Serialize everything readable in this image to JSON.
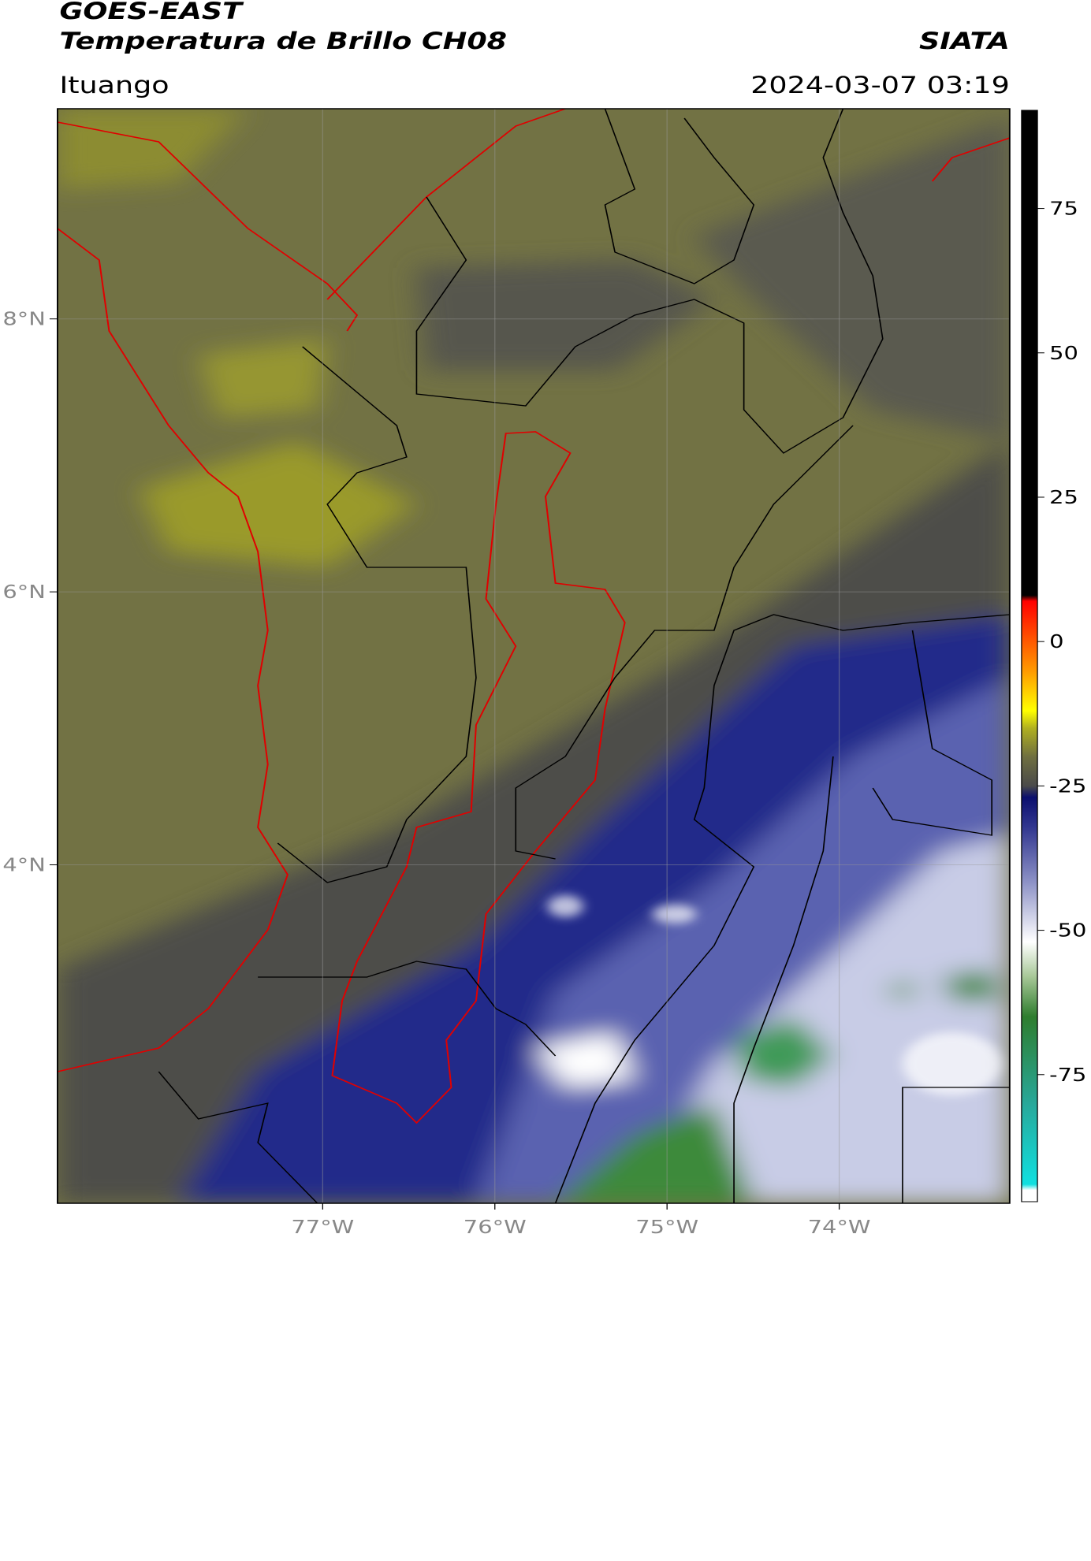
{
  "header": {
    "title": "GOES-EAST",
    "subtitle": "Temperatura de Brillo CH08",
    "source": "SIATA",
    "location": "Ituango",
    "datetime": "2024-03-07 03:19"
  },
  "map": {
    "xlim": [
      -78.54,
      -73.01
    ],
    "ylim": [
      1.52,
      9.54
    ],
    "xticks": [
      {
        "value": -77,
        "label": "77°W"
      },
      {
        "value": -76,
        "label": "76°W"
      },
      {
        "value": -75,
        "label": "75°W"
      },
      {
        "value": -74,
        "label": "74°W"
      }
    ],
    "yticks": [
      {
        "value": 8,
        "label": "8°N"
      },
      {
        "value": 6,
        "label": "6°N"
      },
      {
        "value": 4,
        "label": "4°N"
      }
    ],
    "grid": true
  },
  "colorbar": {
    "lim": [
      -97,
      92
    ],
    "ticks": [
      75,
      50,
      25,
      0,
      -25,
      -50,
      -75
    ],
    "colormap": [
      {
        "value": -97,
        "color": "#ffffff"
      },
      {
        "value": -95,
        "color": "#ffffff"
      },
      {
        "value": -94,
        "color": "#10e0e0"
      },
      {
        "value": -80,
        "color": "#28a89a"
      },
      {
        "value": -65,
        "color": "#2e7d2e"
      },
      {
        "value": -58,
        "color": "#a8c898"
      },
      {
        "value": -52,
        "color": "#ffffff"
      },
      {
        "value": -42,
        "color": "#9095c8"
      },
      {
        "value": -32,
        "color": "#30358f"
      },
      {
        "value": -27,
        "color": "#0b0f6e"
      },
      {
        "value": -25,
        "color": "#4a4a4a"
      },
      {
        "value": -20,
        "color": "#6f6f40"
      },
      {
        "value": -15,
        "color": "#b0b020"
      },
      {
        "value": -12,
        "color": "#ffff00"
      },
      {
        "value": -5,
        "color": "#ff9900"
      },
      {
        "value": 7,
        "color": "#ff0000"
      },
      {
        "value": 8,
        "color": "#000000"
      },
      {
        "value": 92,
        "color": "#000000"
      }
    ]
  }
}
